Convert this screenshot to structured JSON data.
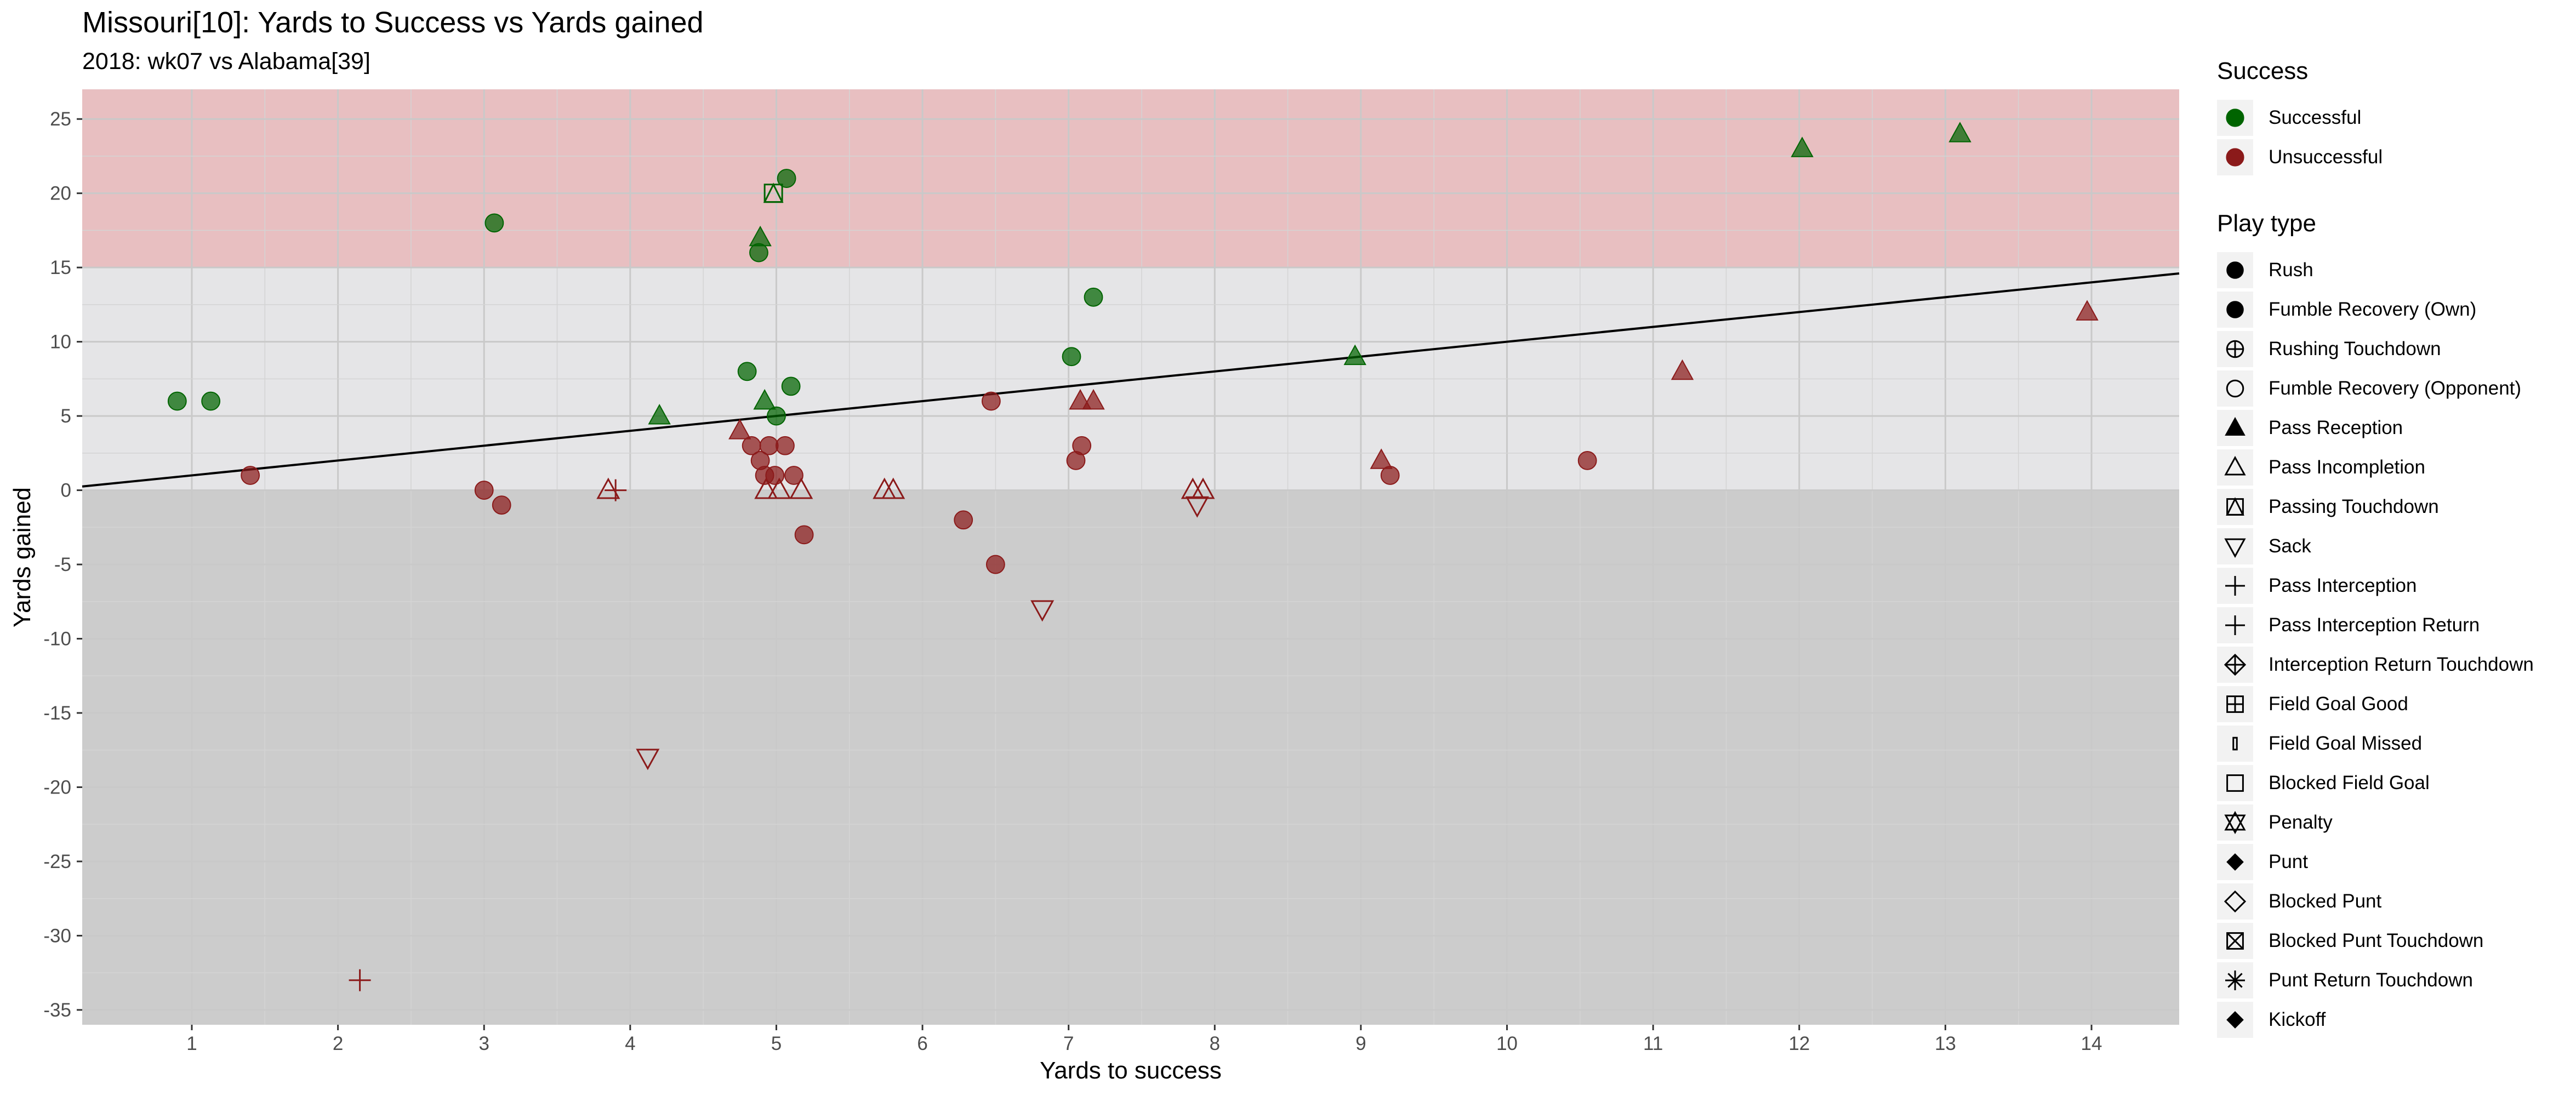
{
  "chart_data": {
    "type": "scatter",
    "title": "Missouri[10]: Yards to Success vs Yards gained",
    "subtitle": "2018: wk07 vs Alabama[39]",
    "xlabel": "Yards to success",
    "ylabel": "Yards gained",
    "xlim": [
      0.25,
      14.6
    ],
    "ylim": [
      -36,
      27
    ],
    "x_ticks": [
      1,
      2,
      3,
      4,
      5,
      6,
      7,
      8,
      9,
      10,
      11,
      12,
      13,
      14
    ],
    "y_ticks": [
      -35,
      -30,
      -25,
      -20,
      -15,
      -10,
      -5,
      0,
      5,
      10,
      15,
      20,
      25
    ],
    "x_tick_labels": [
      "1",
      "2",
      "3",
      "4",
      "5",
      "6",
      "7",
      "8",
      "9",
      "10",
      "11",
      "12",
      "13",
      "14"
    ],
    "y_tick_labels": [
      "-35",
      "-30",
      "-25",
      "-20",
      "-15",
      "-10",
      "-5",
      "0",
      "5",
      "10",
      "15",
      "20",
      "25"
    ],
    "grid": true,
    "bands": [
      {
        "from": 15,
        "to": 27,
        "color": "#e8bfc1"
      },
      {
        "from": 0,
        "to": 15,
        "color": "#e5e5e7"
      },
      {
        "from": -36,
        "to": 0,
        "color": "#cccccc"
      }
    ],
    "reference_line": {
      "slope": 1,
      "intercept": 0,
      "color": "#000000"
    },
    "colors": {
      "Successful": "#006400",
      "Unsuccessful": "#8b1a1a"
    },
    "legend_placement": "right",
    "points": [
      {
        "x": 0.9,
        "y": 6,
        "success": "Successful",
        "play": "Rush"
      },
      {
        "x": 1.13,
        "y": 6,
        "success": "Successful",
        "play": "Rush"
      },
      {
        "x": 1.4,
        "y": 1,
        "success": "Unsuccessful",
        "play": "Rush"
      },
      {
        "x": 2.15,
        "y": -33,
        "success": "Unsuccessful",
        "play": "Pass Interception"
      },
      {
        "x": 3.0,
        "y": 0,
        "success": "Unsuccessful",
        "play": "Rush"
      },
      {
        "x": 3.07,
        "y": 18,
        "success": "Successful",
        "play": "Rush"
      },
      {
        "x": 3.12,
        "y": -1,
        "success": "Unsuccessful",
        "play": "Rush"
      },
      {
        "x": 3.85,
        "y": 0,
        "success": "Unsuccessful",
        "play": "Pass Incompletion"
      },
      {
        "x": 3.9,
        "y": 0,
        "success": "Unsuccessful",
        "play": "Pass Interception"
      },
      {
        "x": 4.12,
        "y": -18,
        "success": "Unsuccessful",
        "play": "Sack"
      },
      {
        "x": 4.2,
        "y": 5,
        "success": "Successful",
        "play": "Pass Reception"
      },
      {
        "x": 4.75,
        "y": 4,
        "success": "Unsuccessful",
        "play": "Pass Reception"
      },
      {
        "x": 4.8,
        "y": 8,
        "success": "Successful",
        "play": "Rush"
      },
      {
        "x": 4.83,
        "y": 3,
        "success": "Unsuccessful",
        "play": "Rush"
      },
      {
        "x": 4.88,
        "y": 16,
        "success": "Successful",
        "play": "Rush"
      },
      {
        "x": 4.89,
        "y": 17,
        "success": "Successful",
        "play": "Pass Reception"
      },
      {
        "x": 4.89,
        "y": 2,
        "success": "Unsuccessful",
        "play": "Rush"
      },
      {
        "x": 4.92,
        "y": 6,
        "success": "Successful",
        "play": "Pass Reception"
      },
      {
        "x": 4.92,
        "y": 1,
        "success": "Unsuccessful",
        "play": "Rush"
      },
      {
        "x": 4.93,
        "y": 0,
        "success": "Unsuccessful",
        "play": "Pass Incompletion"
      },
      {
        "x": 4.95,
        "y": 3,
        "success": "Unsuccessful",
        "play": "Rush"
      },
      {
        "x": 4.98,
        "y": 20,
        "success": "Successful",
        "play": "Passing Touchdown"
      },
      {
        "x": 4.99,
        "y": 1,
        "success": "Unsuccessful",
        "play": "Rush"
      },
      {
        "x": 5.0,
        "y": 5,
        "success": "Successful",
        "play": "Rush"
      },
      {
        "x": 5.02,
        "y": 0,
        "success": "Unsuccessful",
        "play": "Pass Incompletion"
      },
      {
        "x": 5.06,
        "y": 3,
        "success": "Unsuccessful",
        "play": "Rush"
      },
      {
        "x": 5.07,
        "y": 21,
        "success": "Successful",
        "play": "Rush"
      },
      {
        "x": 5.1,
        "y": 7,
        "success": "Successful",
        "play": "Rush"
      },
      {
        "x": 5.12,
        "y": 1,
        "success": "Unsuccessful",
        "play": "Rush"
      },
      {
        "x": 5.17,
        "y": 0,
        "success": "Unsuccessful",
        "play": "Pass Incompletion"
      },
      {
        "x": 5.19,
        "y": -3,
        "success": "Unsuccessful",
        "play": "Rush"
      },
      {
        "x": 5.74,
        "y": 0,
        "success": "Unsuccessful",
        "play": "Pass Incompletion"
      },
      {
        "x": 5.8,
        "y": 0,
        "success": "Unsuccessful",
        "play": "Pass Incompletion"
      },
      {
        "x": 6.28,
        "y": -2,
        "success": "Unsuccessful",
        "play": "Rush"
      },
      {
        "x": 6.47,
        "y": 6,
        "success": "Unsuccessful",
        "play": "Rush"
      },
      {
        "x": 6.5,
        "y": -5,
        "success": "Unsuccessful",
        "play": "Rush"
      },
      {
        "x": 6.82,
        "y": -8,
        "success": "Unsuccessful",
        "play": "Sack"
      },
      {
        "x": 7.02,
        "y": 9,
        "success": "Successful",
        "play": "Rush"
      },
      {
        "x": 7.05,
        "y": 2,
        "success": "Unsuccessful",
        "play": "Rush"
      },
      {
        "x": 7.08,
        "y": 6,
        "success": "Unsuccessful",
        "play": "Pass Reception"
      },
      {
        "x": 7.09,
        "y": 3,
        "success": "Unsuccessful",
        "play": "Rush"
      },
      {
        "x": 7.17,
        "y": 6,
        "success": "Unsuccessful",
        "play": "Pass Reception"
      },
      {
        "x": 7.17,
        "y": 13,
        "success": "Successful",
        "play": "Rush"
      },
      {
        "x": 7.85,
        "y": 0,
        "success": "Unsuccessful",
        "play": "Pass Incompletion"
      },
      {
        "x": 7.88,
        "y": -1,
        "success": "Unsuccessful",
        "play": "Sack"
      },
      {
        "x": 7.92,
        "y": 0,
        "success": "Unsuccessful",
        "play": "Pass Incompletion"
      },
      {
        "x": 8.96,
        "y": 9,
        "success": "Successful",
        "play": "Pass Reception"
      },
      {
        "x": 9.14,
        "y": 2,
        "success": "Unsuccessful",
        "play": "Pass Reception"
      },
      {
        "x": 9.2,
        "y": 1,
        "success": "Unsuccessful",
        "play": "Rush"
      },
      {
        "x": 10.55,
        "y": 2,
        "success": "Unsuccessful",
        "play": "Rush"
      },
      {
        "x": 11.2,
        "y": 8,
        "success": "Unsuccessful",
        "play": "Pass Reception"
      },
      {
        "x": 12.02,
        "y": 23,
        "success": "Successful",
        "play": "Pass Reception"
      },
      {
        "x": 13.1,
        "y": 24,
        "success": "Successful",
        "play": "Pass Reception"
      },
      {
        "x": 13.97,
        "y": 12,
        "success": "Unsuccessful",
        "play": "Pass Reception"
      }
    ]
  },
  "legend": {
    "success": {
      "title": "Success",
      "items": [
        {
          "label": "Successful",
          "color": "#006400"
        },
        {
          "label": "Unsuccessful",
          "color": "#8b1a1a"
        }
      ]
    },
    "play_type": {
      "title": "Play type",
      "items": [
        {
          "label": "Rush",
          "icon": "filled-circle-icon"
        },
        {
          "label": "Fumble Recovery (Own)",
          "icon": "filled-circle-icon"
        },
        {
          "label": "Rushing Touchdown",
          "icon": "circle-plus-icon"
        },
        {
          "label": "Fumble Recovery (Opponent)",
          "icon": "open-circle-icon"
        },
        {
          "label": "Pass Reception",
          "icon": "filled-triangle-icon"
        },
        {
          "label": "Pass Incompletion",
          "icon": "open-triangle-icon"
        },
        {
          "label": "Passing Touchdown",
          "icon": "square-triangle-icon"
        },
        {
          "label": "Sack",
          "icon": "open-down-triangle-icon"
        },
        {
          "label": "Pass Interception",
          "icon": "plus-icon"
        },
        {
          "label": "Pass Interception Return",
          "icon": "plus-icon"
        },
        {
          "label": "Interception Return Touchdown",
          "icon": "diamond-plus-icon"
        },
        {
          "label": "Field Goal Good",
          "icon": "square-plus-icon"
        },
        {
          "label": "Field Goal Missed",
          "icon": "thin-bar-icon"
        },
        {
          "label": "Blocked Field Goal",
          "icon": "open-square-icon"
        },
        {
          "label": "Penalty",
          "icon": "star-of-david-icon"
        },
        {
          "label": "Punt",
          "icon": "filled-diamond-icon"
        },
        {
          "label": "Blocked Punt",
          "icon": "open-diamond-icon"
        },
        {
          "label": "Blocked Punt Touchdown",
          "icon": "square-cross-icon"
        },
        {
          "label": "Punt Return Touchdown",
          "icon": "asterisk-icon"
        },
        {
          "label": "Kickoff",
          "icon": "filled-diamond-icon"
        }
      ]
    }
  }
}
